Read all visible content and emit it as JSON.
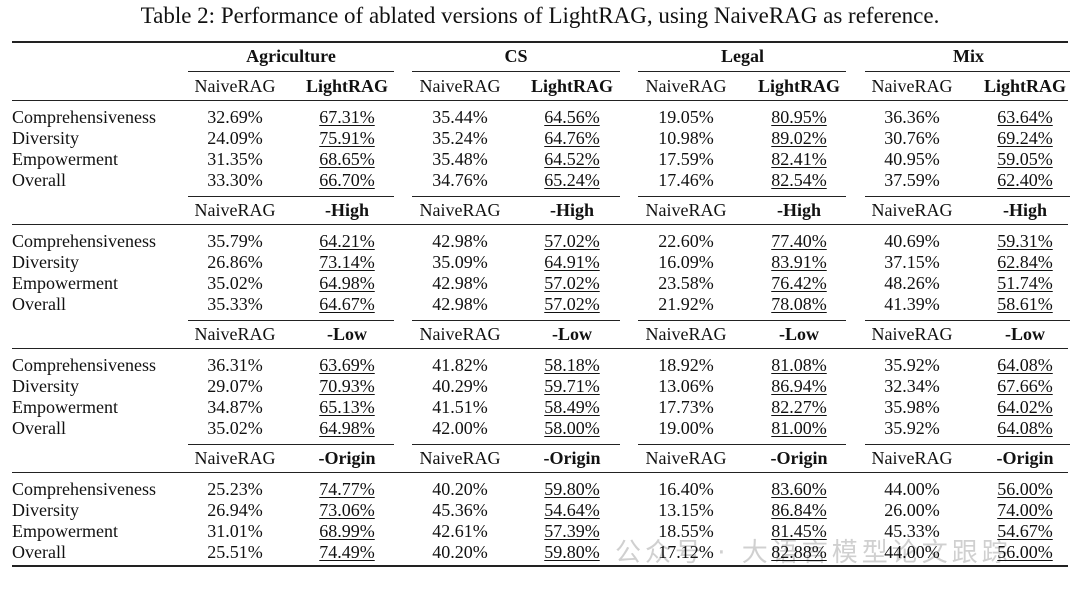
{
  "caption": "Table 2: Performance of ablated versions of LightRAG, using NaiveRAG as reference.",
  "domains": [
    "Agriculture",
    "CS",
    "Legal",
    "Mix"
  ],
  "blocks": [
    {
      "baseline": "NaiveRAG",
      "variant": "LightRAG",
      "rows": [
        {
          "metric": "Comprehensiveness",
          "values": [
            "32.69%",
            "67.31%",
            "35.44%",
            "64.56%",
            "19.05%",
            "80.95%",
            "36.36%",
            "63.64%"
          ]
        },
        {
          "metric": "Diversity",
          "values": [
            "24.09%",
            "75.91%",
            "35.24%",
            "64.76%",
            "10.98%",
            "89.02%",
            "30.76%",
            "69.24%"
          ]
        },
        {
          "metric": "Empowerment",
          "values": [
            "31.35%",
            "68.65%",
            "35.48%",
            "64.52%",
            "17.59%",
            "82.41%",
            "40.95%",
            "59.05%"
          ]
        },
        {
          "metric": "Overall",
          "values": [
            "33.30%",
            "66.70%",
            "34.76%",
            "65.24%",
            "17.46%",
            "82.54%",
            "37.59%",
            "62.40%"
          ]
        }
      ]
    },
    {
      "baseline": "NaiveRAG",
      "variant": "-High",
      "rows": [
        {
          "metric": "Comprehensiveness",
          "values": [
            "35.79%",
            "64.21%",
            "42.98%",
            "57.02%",
            "22.60%",
            "77.40%",
            "40.69%",
            "59.31%"
          ]
        },
        {
          "metric": "Diversity",
          "values": [
            "26.86%",
            "73.14%",
            "35.09%",
            "64.91%",
            "16.09%",
            "83.91%",
            "37.15%",
            "62.84%"
          ]
        },
        {
          "metric": "Empowerment",
          "values": [
            "35.02%",
            "64.98%",
            "42.98%",
            "57.02%",
            "23.58%",
            "76.42%",
            "48.26%",
            "51.74%"
          ]
        },
        {
          "metric": "Overall",
          "values": [
            "35.33%",
            "64.67%",
            "42.98%",
            "57.02%",
            "21.92%",
            "78.08%",
            "41.39%",
            "58.61%"
          ]
        }
      ]
    },
    {
      "baseline": "NaiveRAG",
      "variant": "-Low",
      "rows": [
        {
          "metric": "Comprehensiveness",
          "values": [
            "36.31%",
            "63.69%",
            "41.82%",
            "58.18%",
            "18.92%",
            "81.08%",
            "35.92%",
            "64.08%"
          ]
        },
        {
          "metric": "Diversity",
          "values": [
            "29.07%",
            "70.93%",
            "40.29%",
            "59.71%",
            "13.06%",
            "86.94%",
            "32.34%",
            "67.66%"
          ]
        },
        {
          "metric": "Empowerment",
          "values": [
            "34.87%",
            "65.13%",
            "41.51%",
            "58.49%",
            "17.73%",
            "82.27%",
            "35.98%",
            "64.02%"
          ]
        },
        {
          "metric": "Overall",
          "values": [
            "35.02%",
            "64.98%",
            "42.00%",
            "58.00%",
            "19.00%",
            "81.00%",
            "35.92%",
            "64.08%"
          ]
        }
      ]
    },
    {
      "baseline": "NaiveRAG",
      "variant": "-Origin",
      "rows": [
        {
          "metric": "Comprehensiveness",
          "values": [
            "25.23%",
            "74.77%",
            "40.20%",
            "59.80%",
            "16.40%",
            "83.60%",
            "44.00%",
            "56.00%"
          ]
        },
        {
          "metric": "Diversity",
          "values": [
            "26.94%",
            "73.06%",
            "45.36%",
            "54.64%",
            "13.15%",
            "86.84%",
            "26.00%",
            "74.00%"
          ]
        },
        {
          "metric": "Empowerment",
          "values": [
            "31.01%",
            "68.99%",
            "42.61%",
            "57.39%",
            "18.55%",
            "81.45%",
            "45.33%",
            "54.67%"
          ]
        },
        {
          "metric": "Overall",
          "values": [
            "25.51%",
            "74.49%",
            "40.20%",
            "59.80%",
            "17.12%",
            "82.88%",
            "44.00%",
            "56.00%"
          ]
        }
      ]
    }
  ],
  "watermark": "公众号 · 大语言模型论文跟踪"
}
